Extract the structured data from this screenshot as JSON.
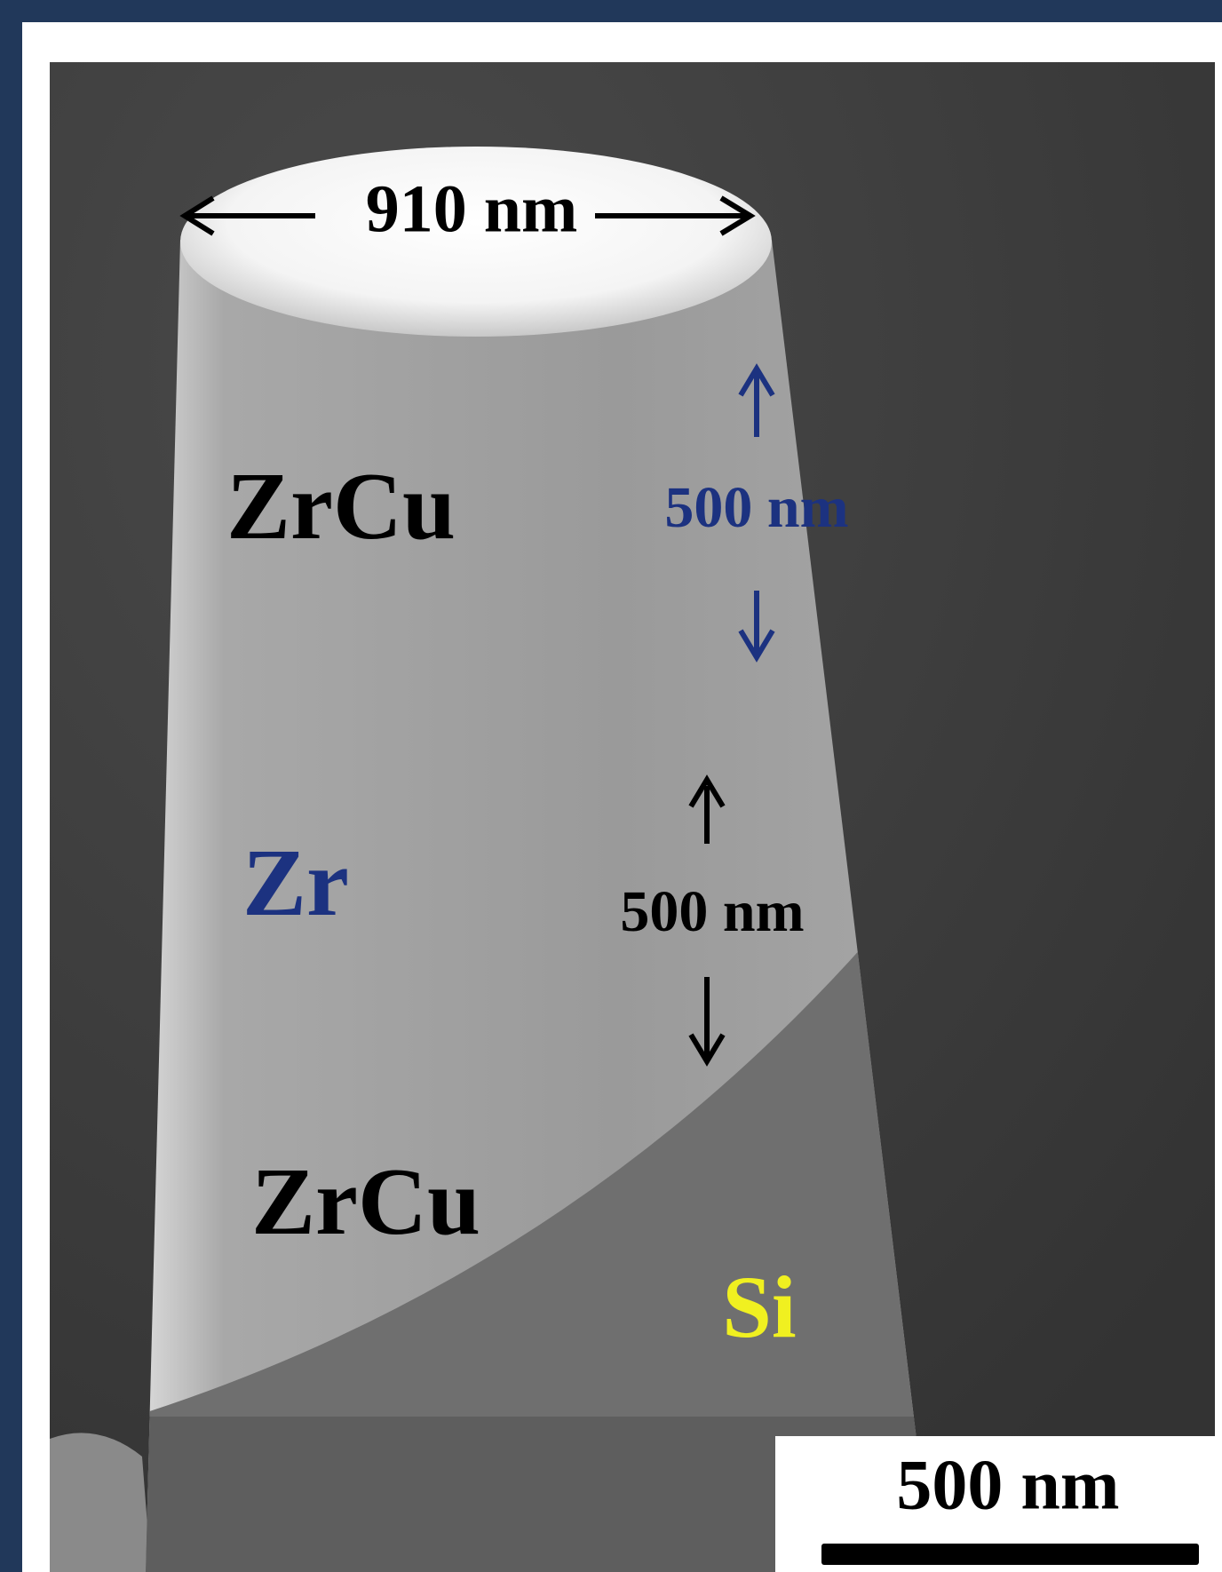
{
  "labels": {
    "top_width": "910 nm",
    "layer_top": "ZrCu",
    "thickness_top": "500 nm",
    "layer_middle": "Zr",
    "thickness_middle": "500 nm",
    "layer_bottom": "ZrCu",
    "substrate": "Si",
    "scale_bar": "500 nm"
  }
}
